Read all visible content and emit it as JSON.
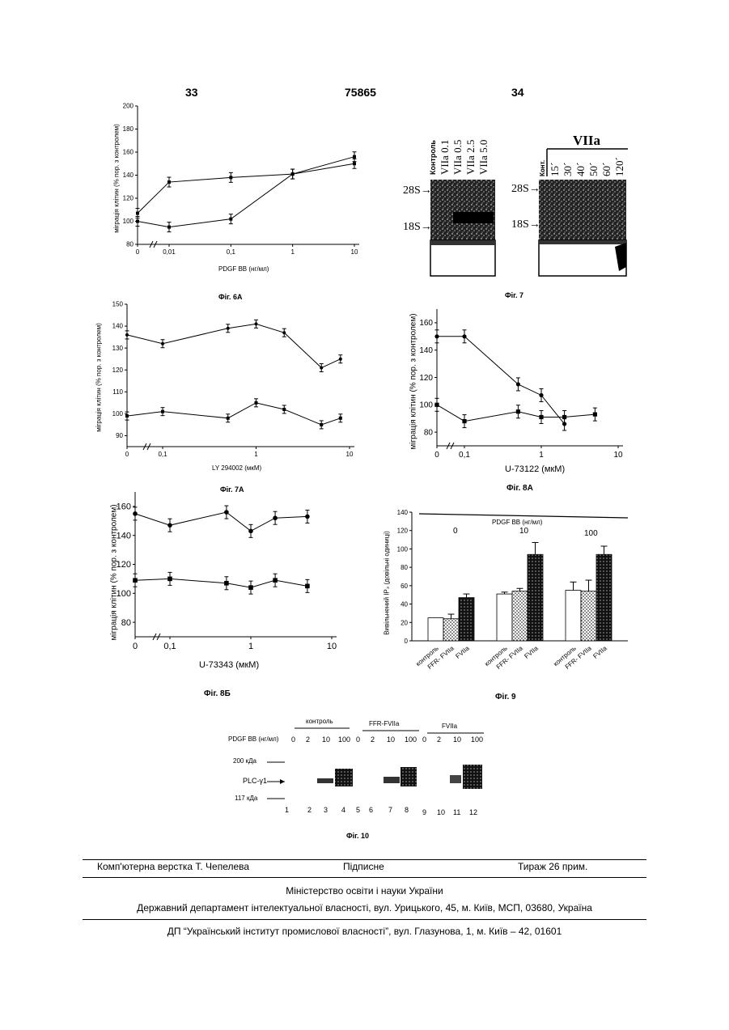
{
  "header": {
    "left_page": "33",
    "patent_no": "75865",
    "right_page": "34"
  },
  "figures": {
    "fig6a": {
      "caption": "Фіг. 6А",
      "chart_data": {
        "type": "line",
        "xlabel": "PDGF BB (нг/мл)",
        "ylabel": "міграція клітин (% пор. з контролем)",
        "x_ticks": [
          "0",
          "0,01",
          "0,1",
          "1",
          "10"
        ],
        "y_ticks": [
          "80",
          "100",
          "120",
          "140",
          "160",
          "180",
          "200"
        ],
        "ylim": [
          80,
          200
        ],
        "series": [
          {
            "marker": "square",
            "x": [
              "0",
              "0,01",
              "0,1",
              "1",
              "10"
            ],
            "values": [
              107,
              134,
              138,
              141,
              150
            ]
          },
          {
            "marker": "square",
            "x": [
              "0",
              "0,01",
              "0,1",
              "1",
              "10"
            ],
            "values": [
              100,
              95,
              102,
              141,
              156
            ]
          }
        ]
      }
    },
    "fig7": {
      "caption": "Фіг. 7",
      "left_lanes": [
        "Контроль",
        "VIIa 0.1",
        "VIIa 0.5",
        "VIIa 2.5",
        "VIIa 5.0"
      ],
      "right_title": "VIIa",
      "right_lanes": [
        "Конт.",
        "15´",
        "30´",
        "40´",
        "50´",
        "60´",
        "120´"
      ],
      "markers": [
        "28S",
        "18S"
      ]
    },
    "fig7a": {
      "caption": "Фіг. 7А",
      "chart_data": {
        "type": "line",
        "xlabel": "LY 294002 (мкМ)",
        "ylabel": "міграція клітин (% пор. з контролем)",
        "x_ticks": [
          "0",
          "0,1",
          "1",
          "10"
        ],
        "y_ticks": [
          "90",
          "100",
          "110",
          "120",
          "130",
          "140",
          "150"
        ],
        "ylim": [
          85,
          150
        ],
        "series": [
          {
            "marker": "circle",
            "x": [
              0,
              0.1,
              0.5,
              1,
              2,
              5,
              8
            ],
            "values": [
              136,
              132,
              139,
              141,
              137,
              121,
              125
            ]
          },
          {
            "marker": "square",
            "x": [
              0,
              0.1,
              0.5,
              1,
              2,
              5,
              8
            ],
            "values": [
              99,
              101,
              98,
              105,
              102,
              95,
              98
            ]
          }
        ]
      }
    },
    "fig8a": {
      "caption": "Фіг. 8А",
      "chart_data": {
        "type": "line",
        "xlabel": "U-73122 (мкМ)",
        "ylabel": "міграція клітин (% пор. з контролем)",
        "x_ticks": [
          "0",
          "0,1",
          "1",
          "10"
        ],
        "y_ticks": [
          "80",
          "100",
          "120",
          "140",
          "160"
        ],
        "ylim": [
          70,
          170
        ],
        "series": [
          {
            "marker": "circle",
            "x": [
              0,
              0.1,
              0.5,
              1,
              2
            ],
            "values": [
              150,
              150,
              115,
              107,
              86
            ]
          },
          {
            "marker": "square",
            "x": [
              0,
              0.1,
              0.5,
              1,
              2,
              5
            ],
            "values": [
              100,
              88,
              95,
              91,
              91,
              93
            ]
          }
        ]
      }
    },
    "fig8b": {
      "caption": "Фіг. 8Б",
      "chart_data": {
        "type": "line",
        "xlabel": "U-73343 (мкМ)",
        "ylabel": "міграція клітин (% пор. з контролем)",
        "x_ticks": [
          "0",
          "0,1",
          "1",
          "10"
        ],
        "y_ticks": [
          "80",
          "100",
          "120",
          "140",
          "160"
        ],
        "ylim": [
          70,
          170
        ],
        "series": [
          {
            "marker": "circle",
            "x": [
              0,
              0.1,
              0.5,
              1,
              2,
              5
            ],
            "values": [
              155,
              147,
              156,
              143,
              152,
              153
            ]
          },
          {
            "marker": "square",
            "x": [
              0,
              0.1,
              0.5,
              1,
              2,
              5
            ],
            "values": [
              109,
              110,
              107,
              104,
              109,
              105
            ]
          }
        ]
      }
    },
    "fig9": {
      "caption": "Фіг. 9",
      "chart_data": {
        "type": "bar",
        "title": "PDGF BB (нг/мл)",
        "ylabel": "Вивільнений IP₃ (довільні одиниці)",
        "y_ticks": [
          "0",
          "20",
          "40",
          "60",
          "80",
          "100",
          "120",
          "140"
        ],
        "ylim": [
          0,
          140
        ],
        "groups": [
          "0",
          "10",
          "100"
        ],
        "categories": [
          "контроль",
          "FFR- FVIIa",
          "FVIIa"
        ],
        "series": [
          {
            "name": "контроль",
            "fill": "white",
            "values": [
              25,
              51,
              55
            ]
          },
          {
            "name": "FFR- FVIIa",
            "fill": "dotted",
            "values": [
              24,
              54,
              54
            ]
          },
          {
            "name": "FVIIa",
            "fill": "dark",
            "values": [
              47,
              94,
              94
            ]
          }
        ],
        "errors": [
          [
            0,
            2,
            9
          ],
          [
            5,
            3,
            12
          ],
          [
            4,
            13,
            9
          ]
        ]
      }
    },
    "fig10": {
      "caption": "Фіг. 10",
      "groups": [
        "контроль",
        "FFR-FVIIa",
        "FVIIa"
      ],
      "row_label": "PDGF BB (нг/мл)",
      "doses": [
        "0",
        "2",
        "10",
        "100",
        "0",
        "2",
        "10",
        "100",
        "0",
        "2",
        "10",
        "100"
      ],
      "markers": [
        "200 кДа",
        "PLC-γ1",
        "117 кДа"
      ],
      "lanes": [
        "1",
        "2",
        "3",
        "4",
        "5",
        "6",
        "7",
        "8",
        "9",
        "10",
        "11",
        "12"
      ]
    }
  },
  "footer": {
    "layout": "Комп'ютерна верстка Т. Чепелева",
    "signed": "Підписне",
    "circulation": "Тираж 26 прим.",
    "ministry": "Міністерство освіти і науки України",
    "department": "Державний департамент інтелектуальної власності, вул. Урицького, 45, м. Київ, МСП, 03680, Україна",
    "institute": "ДП “Український інститут промислової власності”, вул. Глазунова, 1, м. Київ – 42, 01601"
  }
}
